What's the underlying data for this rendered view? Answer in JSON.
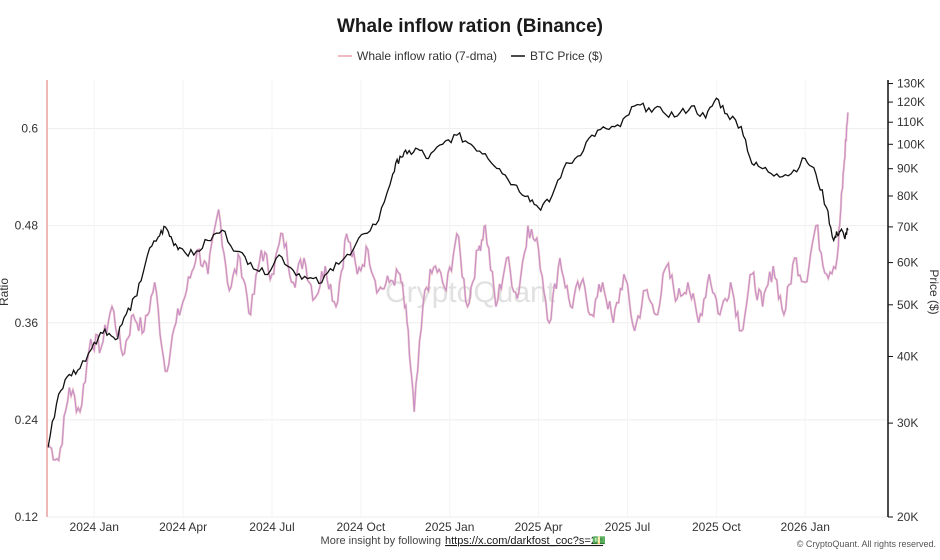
{
  "chart_data": {
    "type": "line",
    "title": "Whale inflow ration (Binance)",
    "legend": {
      "placement": "top-center",
      "entries": [
        {
          "name": "Whale inflow ratio (7-dma)",
          "color": "#e8a3a9"
        },
        {
          "name": "BTC Price ($)",
          "color": "#000000"
        }
      ]
    },
    "x_axis": {
      "range": [
        2023.87,
        2026.23
      ],
      "tick_labels": [
        "2024 Jan",
        "2024 Apr",
        "2024 Jul",
        "2024 Oct",
        "2025 Jan",
        "2025 Apr",
        "2025 Jul",
        "2025 Oct",
        "2026 Jan"
      ],
      "tick_values": [
        2024.0,
        2024.25,
        2024.5,
        2024.75,
        2025.0,
        2025.25,
        2025.5,
        2025.75,
        2026.0
      ]
    },
    "y_left": {
      "label": "Ratio",
      "range": [
        0.12,
        0.66
      ],
      "ticks": [
        0.12,
        0.24,
        0.36,
        0.48,
        0.6
      ],
      "tick_labels": [
        "0.12",
        "0.24",
        "0.36",
        "0.48",
        "0.6"
      ]
    },
    "y_right": {
      "label": "Price ($)",
      "scale": "log",
      "range": [
        20000,
        132000
      ],
      "ticks": [
        20000,
        30000,
        40000,
        50000,
        60000,
        70000,
        80000,
        90000,
        100000,
        110000,
        120000,
        130000
      ],
      "tick_labels": [
        "20K",
        "30K",
        "40K",
        "50K",
        "60K",
        "70K",
        "80K",
        "90K",
        "100K",
        "110K",
        "120K",
        "130K"
      ]
    },
    "series": [
      {
        "name": "Whale inflow ratio (7-dma)",
        "axis": "left",
        "x": [
          2023.87,
          2023.9,
          2023.93,
          2023.96,
          2023.99,
          2024.02,
          2024.05,
          2024.08,
          2024.11,
          2024.14,
          2024.17,
          2024.2,
          2024.23,
          2024.26,
          2024.29,
          2024.32,
          2024.35,
          2024.38,
          2024.41,
          2024.44,
          2024.47,
          2024.5,
          2024.53,
          2024.56,
          2024.59,
          2024.62,
          2024.65,
          2024.68,
          2024.71,
          2024.74,
          2024.77,
          2024.8,
          2024.83,
          2024.86,
          2024.88,
          2024.9,
          2024.93,
          2024.96,
          2024.99,
          2025.02,
          2025.05,
          2025.08,
          2025.1,
          2025.13,
          2025.16,
          2025.19,
          2025.22,
          2025.25,
          2025.28,
          2025.31,
          2025.34,
          2025.37,
          2025.4,
          2025.43,
          2025.46,
          2025.49,
          2025.52,
          2025.55,
          2025.58,
          2025.61,
          2025.64,
          2025.67,
          2025.7,
          2025.73,
          2025.76,
          2025.79,
          2025.82,
          2025.85,
          2025.88,
          2025.91,
          2025.94,
          2025.97,
          2026.0,
          2026.03,
          2026.06,
          2026.09,
          2026.1,
          2026.11,
          2026.12
        ],
        "values": [
          0.21,
          0.19,
          0.28,
          0.25,
          0.34,
          0.33,
          0.38,
          0.32,
          0.37,
          0.35,
          0.41,
          0.3,
          0.36,
          0.4,
          0.45,
          0.42,
          0.5,
          0.4,
          0.44,
          0.37,
          0.45,
          0.42,
          0.47,
          0.41,
          0.44,
          0.39,
          0.43,
          0.38,
          0.47,
          0.42,
          0.45,
          0.4,
          0.41,
          0.42,
          0.36,
          0.25,
          0.4,
          0.43,
          0.4,
          0.47,
          0.38,
          0.45,
          0.48,
          0.38,
          0.44,
          0.39,
          0.48,
          0.45,
          0.36,
          0.44,
          0.38,
          0.41,
          0.37,
          0.41,
          0.36,
          0.42,
          0.35,
          0.4,
          0.37,
          0.43,
          0.39,
          0.41,
          0.36,
          0.42,
          0.37,
          0.41,
          0.35,
          0.42,
          0.38,
          0.43,
          0.37,
          0.44,
          0.41,
          0.48,
          0.42,
          0.44,
          0.5,
          0.56,
          0.62
        ]
      },
      {
        "name": "BTC Price ($)",
        "axis": "right",
        "x": [
          2023.87,
          2023.9,
          2023.93,
          2023.96,
          2024.0,
          2024.03,
          2024.06,
          2024.09,
          2024.12,
          2024.15,
          2024.18,
          2024.2,
          2024.22,
          2024.24,
          2024.28,
          2024.32,
          2024.36,
          2024.4,
          2024.44,
          2024.48,
          2024.52,
          2024.56,
          2024.6,
          2024.64,
          2024.68,
          2024.72,
          2024.76,
          2024.8,
          2024.84,
          2024.86,
          2024.88,
          2024.91,
          2024.94,
          2024.98,
          2025.02,
          2025.06,
          2025.1,
          2025.14,
          2025.18,
          2025.22,
          2025.25,
          2025.28,
          2025.32,
          2025.36,
          2025.4,
          2025.44,
          2025.48,
          2025.52,
          2025.56,
          2025.6,
          2025.64,
          2025.68,
          2025.72,
          2025.75,
          2025.78,
          2025.82,
          2025.85,
          2025.88,
          2025.92,
          2025.96,
          2026.0,
          2026.03,
          2026.06,
          2026.08,
          2026.09,
          2026.1,
          2026.11,
          2026.12
        ],
        "values": [
          27000,
          34000,
          37000,
          38000,
          42500,
          45000,
          43000,
          48000,
          52000,
          62000,
          67000,
          70000,
          66000,
          64000,
          62000,
          66000,
          69000,
          63000,
          60000,
          57000,
          62000,
          58000,
          56000,
          55000,
          60000,
          62000,
          68000,
          72000,
          88000,
          95000,
          96000,
          98000,
          94000,
          100000,
          104000,
          100000,
          96000,
          90000,
          84000,
          80000,
          76000,
          78000,
          90000,
          95000,
          104000,
          107000,
          108000,
          118000,
          117000,
          115000,
          113000,
          118000,
          112000,
          122000,
          114000,
          108000,
          92000,
          90000,
          88000,
          88000,
          94000,
          88000,
          76000,
          66000,
          68000,
          69000,
          67000,
          69000
        ]
      }
    ],
    "annotations": {
      "watermark": "CryptoQuant",
      "footer_text": "More insight by following",
      "footer_link": "https://x.com/darkfost_coc?s=21",
      "footer_emoji": "💵",
      "copyright": "© CryptoQuant. All rights reserved."
    },
    "colors": {
      "ratio_light": "#e8a3a9",
      "ratio_main": "#c68fc8",
      "price": "#111111",
      "grid": "#eeeeee",
      "left_axis": "#e9a19e",
      "right_axis": "#111111"
    },
    "grid": true
  }
}
